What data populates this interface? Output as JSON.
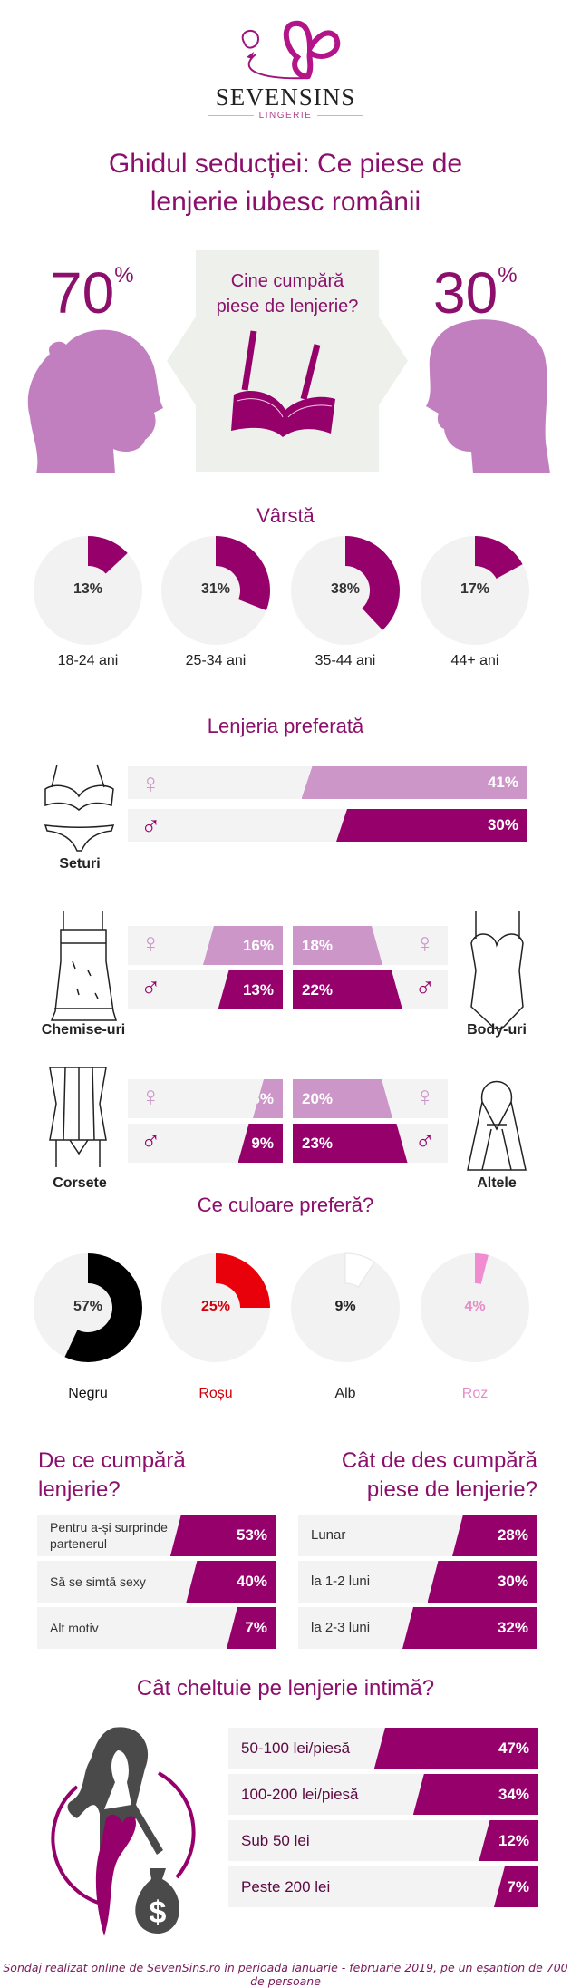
{
  "logo": {
    "brand": "SEVENSINS",
    "sub": "LINGERIE"
  },
  "title_line1": "Ghidul seducției: Ce piese de",
  "title_line2": "lenjerie iubesc românii",
  "buyers": {
    "question_line1": "Cine cumpără",
    "question_line2": "piese de lenjerie?",
    "women": "70",
    "men": "30",
    "pct": "%"
  },
  "colors": {
    "purple": "#96006b",
    "light_purple": "#cc96c9",
    "track": "#f3f3f3",
    "head": "#c27fbf"
  },
  "chart_data": [
    {
      "type": "pie",
      "title": "Vârstă",
      "categories": [
        "18-24 ani",
        "25-34 ani",
        "35-44 ani",
        "44+ ani"
      ],
      "values": [
        13,
        31,
        38,
        17
      ],
      "labels": [
        "13%",
        "31%",
        "38%",
        "17%"
      ],
      "color": "#96006b"
    },
    {
      "type": "bar",
      "title": "Lenjeria preferată",
      "categories": [
        "Seturi",
        "Chemise-uri",
        "Body-uri",
        "Corsete",
        "Altele"
      ],
      "series": [
        {
          "name": "♀",
          "values": [
            41,
            16,
            18,
            6,
            20
          ],
          "labels": [
            "41%",
            "16%",
            "18%",
            "6%",
            "20%"
          ],
          "color": "#cc96c9"
        },
        {
          "name": "♂",
          "values": [
            30,
            13,
            22,
            9,
            23
          ],
          "labels": [
            "30%",
            "13%",
            "22%",
            "9%",
            "23%"
          ],
          "color": "#96006b"
        }
      ]
    },
    {
      "type": "pie",
      "title": "Ce culoare preferă?",
      "categories": [
        "Negru",
        "Roșu",
        "Alb",
        "Roz"
      ],
      "values": [
        57,
        25,
        9,
        4
      ],
      "labels": [
        "57%",
        "25%",
        "9%",
        "4%"
      ],
      "slice_colors": [
        "#000000",
        "#e8000b",
        "#ffffff",
        "#f08ccf"
      ],
      "label_colors": [
        "#111111",
        "#d0000a",
        "#222222",
        "#e58cc6"
      ]
    },
    {
      "type": "bar",
      "title_line1": "De ce cumpără",
      "title_line2": "lenjerie?",
      "categories": [
        "Pentru a-și surprinde partenerul",
        "Să se simtă sexy",
        "Alt motiv"
      ],
      "values": [
        53,
        40,
        7
      ],
      "labels": [
        "53%",
        "40%",
        "7%"
      ]
    },
    {
      "type": "bar",
      "title_line1": "Cât de des cumpără",
      "title_line2": "piese de lenjerie?",
      "categories": [
        "Lunar",
        "la 1-2 luni",
        "la 2-3 luni"
      ],
      "values": [
        28,
        30,
        32
      ],
      "labels": [
        "28%",
        "30%",
        "32%"
      ]
    },
    {
      "type": "bar",
      "title": "Cât cheltuie pe lenjerie intimă?",
      "categories": [
        "50-100 lei/piesă",
        "100-200 lei/piesă",
        "Sub 50 lei",
        "Peste 200 lei"
      ],
      "values": [
        47,
        34,
        12,
        7
      ],
      "labels": [
        "47%",
        "34%",
        "12%",
        "7%"
      ]
    }
  ],
  "pref_labels": {
    "female_symbol": "♀",
    "male_symbol": "♂"
  },
  "footer": "Sondaj realizat online de SevenSins.ro în perioada ianuarie - februarie 2019, pe un eșantion de 700 de persoane"
}
